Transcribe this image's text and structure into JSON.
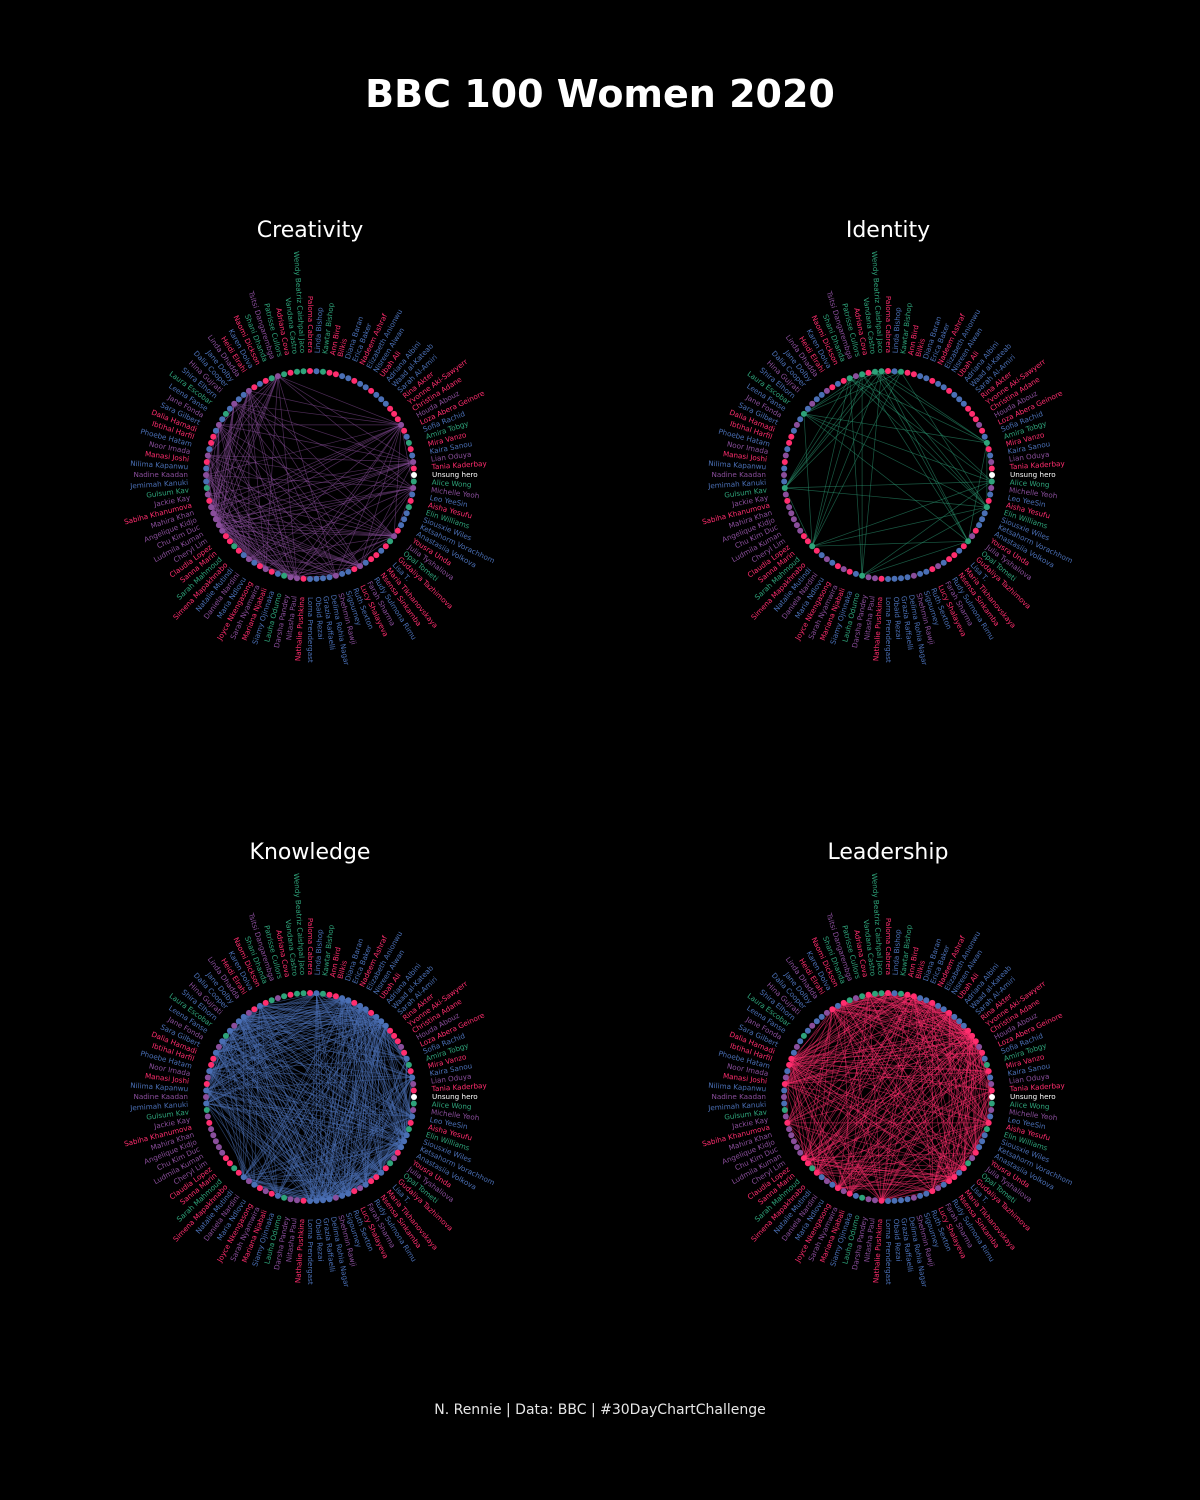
{
  "title": "BBC 100 Women 2020",
  "caption": "N. Rennie | Data: BBC | #30DayChartChallenge",
  "colors": {
    "background": "#000000",
    "Creativity": "#8a4e9c",
    "Identity": "#2ea37a",
    "Knowledge": "#4a6fb5",
    "Leadership": "#ff2d6e"
  },
  "chart_data": [
    {
      "type": "network",
      "title": "Creativity",
      "highlight_category": "Creativity"
    },
    {
      "type": "network",
      "title": "Identity",
      "highlight_category": "Identity"
    },
    {
      "type": "network",
      "title": "Knowledge",
      "highlight_category": "Knowledge"
    },
    {
      "type": "network",
      "title": "Leadership",
      "highlight_category": "Leadership"
    }
  ],
  "nodes": [
    {
      "name": "Unsung hero",
      "category": "Other"
    },
    {
      "name": "Alice Wong",
      "category": "Identity"
    },
    {
      "name": "Michelle Yeoh",
      "category": "Creativity"
    },
    {
      "name": "Leo YeeSin",
      "category": "Knowledge"
    },
    {
      "name": "Aisha Yesufu",
      "category": "Leadership"
    },
    {
      "name": "Elin Williams",
      "category": "Identity"
    },
    {
      "name": "Siousxie Wiles",
      "category": "Knowledge"
    },
    {
      "name": "Ketsahorm Vorachhom",
      "category": "Knowledge"
    },
    {
      "name": "Anastasiia Volkova",
      "category": "Knowledge"
    },
    {
      "name": "Yousra Unda",
      "category": "Leadership"
    },
    {
      "name": "Julia Tyshaliova",
      "category": "Creativity"
    },
    {
      "name": "Opal Tometi",
      "category": "Identity"
    },
    {
      "name": "Gudaliya Tazhimova",
      "category": "Leadership"
    },
    {
      "name": "Lisa T.",
      "category": "Knowledge"
    },
    {
      "name": "Maria Tikhanovskaya",
      "category": "Leadership"
    },
    {
      "name": "Nsensa Sinkamba",
      "category": "Leadership"
    },
    {
      "name": "Rudy Sulmona Rimu",
      "category": "Knowledge"
    },
    {
      "name": "Farah Sharma",
      "category": "Creativity"
    },
    {
      "name": "Lucy Shalayeva",
      "category": "Leadership"
    },
    {
      "name": "Ruth Sexton",
      "category": "Knowledge"
    },
    {
      "name": "Sigourney",
      "category": "Knowledge"
    },
    {
      "name": "Shehmin Rawji",
      "category": "Creativity"
    },
    {
      "name": "Delima Rohia Nagar",
      "category": "Knowledge"
    },
    {
      "name": "Grazia Raffaelli",
      "category": "Knowledge"
    },
    {
      "name": "Obaid Rezai",
      "category": "Knowledge"
    },
    {
      "name": "Lorna Prendergast",
      "category": "Knowledge"
    },
    {
      "name": "Nathalie Pushkina",
      "category": "Leadership"
    },
    {
      "name": "Nitasha Paul",
      "category": "Creativity"
    },
    {
      "name": "Darsha Pandey",
      "category": "Creativity"
    },
    {
      "name": "Lauha Odumo",
      "category": "Identity"
    },
    {
      "name": "Siamy Ojinnaka",
      "category": "Knowledge"
    },
    {
      "name": "Mariana Njabali",
      "category": "Leadership"
    },
    {
      "name": "Sarah Nyamwira",
      "category": "Creativity"
    },
    {
      "name": "Joyce Nkengasong",
      "category": "Leadership"
    },
    {
      "name": "Maria Ndlovu",
      "category": "Knowledge"
    },
    {
      "name": "Daniela Nardini",
      "category": "Creativity"
    },
    {
      "name": "Natalie Mutindi",
      "category": "Knowledge"
    },
    {
      "name": "Simena Mapakhnabo",
      "category": "Leadership"
    },
    {
      "name": "Sarah Mahmoud",
      "category": "Identity"
    },
    {
      "name": "Sanna Marin",
      "category": "Leadership"
    },
    {
      "name": "Claudia Lopez",
      "category": "Leadership"
    },
    {
      "name": "Cheryl Lim",
      "category": "Creativity"
    },
    {
      "name": "Ludmila Kuman",
      "category": "Creativity"
    },
    {
      "name": "Chu Kim Duc",
      "category": "Creativity"
    },
    {
      "name": "Angelique Kidjo",
      "category": "Creativity"
    },
    {
      "name": "Mahira Khan",
      "category": "Creativity"
    },
    {
      "name": "Sabiha Khanumova",
      "category": "Leadership"
    },
    {
      "name": "Jackie Kay",
      "category": "Creativity"
    },
    {
      "name": "Gulsum Kav",
      "category": "Identity"
    },
    {
      "name": "Jemimah Kanuki",
      "category": "Knowledge"
    },
    {
      "name": "Nadine Kaadan",
      "category": "Creativity"
    },
    {
      "name": "Nilima Kapanwu",
      "category": "Knowledge"
    },
    {
      "name": "Manasi Joshi",
      "category": "Leadership"
    },
    {
      "name": "Noor Imada",
      "category": "Creativity"
    },
    {
      "name": "Phoebe Hatam",
      "category": "Knowledge"
    },
    {
      "name": "Ibtihal Harfil",
      "category": "Leadership"
    },
    {
      "name": "Dalia Hamadi",
      "category": "Leadership"
    },
    {
      "name": "Sara Gilbert",
      "category": "Knowledge"
    },
    {
      "name": "Jane Fonda",
      "category": "Creativity"
    },
    {
      "name": "Leena Fanse",
      "category": "Knowledge"
    },
    {
      "name": "Laura Escobar",
      "category": "Identity"
    },
    {
      "name": "Shira Elhorn",
      "category": "Knowledge"
    },
    {
      "name": "Hina Gujrati",
      "category": "Creativity"
    },
    {
      "name": "Dalia Cooper",
      "category": "Knowledge"
    },
    {
      "name": "Jane Dolby",
      "category": "Knowledge"
    },
    {
      "name": "Linda Dhadda",
      "category": "Creativity"
    },
    {
      "name": "Heidi Elrahi",
      "category": "Leadership"
    },
    {
      "name": "Karen Dolva",
      "category": "Knowledge"
    },
    {
      "name": "Naomi Dickson",
      "category": "Leadership"
    },
    {
      "name": "Shani Dhanda",
      "category": "Identity"
    },
    {
      "name": "Tsitsi Dangarembga",
      "category": "Creativity"
    },
    {
      "name": "Patrisse Cullors",
      "category": "Identity"
    },
    {
      "name": "Adriana Cova",
      "category": "Leadership"
    },
    {
      "name": "Vandana Castro",
      "category": "Identity"
    },
    {
      "name": "Wendy Beatriz Caishpal Jaco",
      "category": "Identity"
    },
    {
      "name": "Paloma Cabrera",
      "category": "Leadership"
    },
    {
      "name": "Linda Bishop",
      "category": "Knowledge"
    },
    {
      "name": "Kawtar Bishop",
      "category": "Identity"
    },
    {
      "name": "Ann Bird",
      "category": "Leadership"
    },
    {
      "name": "Bilkis",
      "category": "Leadership"
    },
    {
      "name": "Diana Baran",
      "category": "Knowledge"
    },
    {
      "name": "Erica Baker",
      "category": "Knowledge"
    },
    {
      "name": "Nadeem Ashraf",
      "category": "Leadership"
    },
    {
      "name": "Elizabeth Anionwu",
      "category": "Knowledge"
    },
    {
      "name": "Nisreen Alwan",
      "category": "Knowledge"
    },
    {
      "name": "Ubah Ali",
      "category": "Leadership"
    },
    {
      "name": "Adriana Albini",
      "category": "Knowledge"
    },
    {
      "name": "Waad al-Kateab",
      "category": "Knowledge"
    },
    {
      "name": "Sarah Al-Amiri",
      "category": "Knowledge"
    },
    {
      "name": "Rina Akter",
      "category": "Leadership"
    },
    {
      "name": "Yvonne Aki-Sawyerr",
      "category": "Leadership"
    },
    {
      "name": "Christina Adane",
      "category": "Leadership"
    },
    {
      "name": "Houda Abouz",
      "category": "Creativity"
    },
    {
      "name": "Loza Abera Geinore",
      "category": "Leadership"
    },
    {
      "name": "Sofia Rachid",
      "category": "Knowledge"
    },
    {
      "name": "Amira Tobgy",
      "category": "Identity"
    },
    {
      "name": "Mira Vanzo",
      "category": "Leadership"
    },
    {
      "name": "Kaira Sanou",
      "category": "Knowledge"
    },
    {
      "name": "Lian Oduya",
      "category": "Creativity"
    },
    {
      "name": "Tania Kaderbay",
      "category": "Leadership"
    }
  ]
}
